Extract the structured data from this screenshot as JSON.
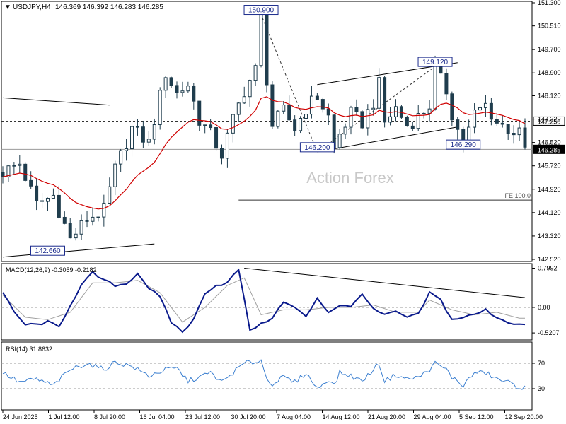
{
  "header": {
    "symbol": "USDJPY,H4",
    "ohlc": "146.369 146.392 146.283 146.285"
  },
  "watermark": "Action Forex",
  "colors": {
    "candle": "#1f3d4d",
    "ma": "#d00000",
    "macd": "#0a1a8c",
    "signal": "#a0a0a0",
    "rsi": "#3b7fd0",
    "grid": "#000000"
  },
  "chart_data": [
    {
      "type": "candlestick",
      "title": "",
      "ylim": [
        142.52,
        151.3
      ],
      "y_ticks": [
        "151.300",
        "150.510",
        "149.700",
        "148.900",
        "148.120",
        "147.320",
        "146.520",
        "145.720",
        "144.920",
        "144.120",
        "143.320",
        "142.520"
      ],
      "x_tick_labels": [
        "24 Jun 2025",
        "1 Jul 12:00",
        "8 Jul 20:00",
        "16 Jul 04:00",
        "23 Jul 12:00",
        "30 Jul 20:00",
        "7 Aug 04:00",
        "14 Aug 12:00",
        "21 Aug 20:00",
        "29 Aug 04:00",
        "5 Sep 12:00",
        "12 Sep 20:00"
      ],
      "close_path": [
        [
          0,
          145.5
        ],
        [
          3,
          145.8
        ],
        [
          6,
          144.4
        ],
        [
          9,
          144.7
        ],
        [
          12,
          143.2
        ],
        [
          15,
          143.9
        ],
        [
          18,
          144.2
        ],
        [
          20,
          145.6
        ],
        [
          23,
          147.0
        ],
        [
          26,
          146.5
        ],
        [
          29,
          148.9
        ],
        [
          31,
          148.2
        ],
        [
          33,
          148.5
        ],
        [
          35,
          147.3
        ],
        [
          37,
          146.8
        ],
        [
          39,
          146.1
        ],
        [
          41,
          147.3
        ],
        [
          43,
          148.3
        ],
        [
          45,
          149.0
        ],
        [
          46,
          150.9
        ],
        [
          47,
          148.7
        ],
        [
          48,
          147.1
        ],
        [
          50,
          147.6
        ],
        [
          52,
          147.0
        ],
        [
          54,
          147.7
        ],
        [
          56,
          148.1
        ],
        [
          58,
          147.4
        ],
        [
          59,
          146.3
        ],
        [
          60,
          146.8
        ],
        [
          62,
          147.5
        ],
        [
          64,
          147.2
        ],
        [
          66,
          147.9
        ],
        [
          67,
          148.5
        ],
        [
          68,
          147.2
        ],
        [
          70,
          147.7
        ],
        [
          72,
          147.1
        ],
        [
          74,
          147.4
        ],
        [
          76,
          147.8
        ],
        [
          77,
          149.0
        ],
        [
          79,
          148.3
        ],
        [
          80,
          147.5
        ],
        [
          82,
          146.4
        ],
        [
          84,
          147.5
        ],
        [
          86,
          147.8
        ],
        [
          88,
          147.2
        ],
        [
          90,
          147.0
        ],
        [
          92,
          146.8
        ],
        [
          93,
          146.3
        ]
      ],
      "highs_lows": {
        "high": 150.9,
        "low": 142.66
      },
      "annotations": [
        {
          "label": "150.900",
          "x": 46,
          "y": 150.9
        },
        {
          "label": "149.120",
          "x": 77,
          "y": 149.12
        },
        {
          "label": "146.200",
          "x": 56,
          "y": 146.2
        },
        {
          "label": "146.290",
          "x": 82,
          "y": 146.29
        },
        {
          "label": "142.660",
          "x": 8,
          "y": 142.66
        }
      ],
      "ma_label": "",
      "levels": [
        {
          "label": "147.250",
          "y": 147.25,
          "style": "dashed"
        },
        {
          "label": "146.285",
          "y": 146.285,
          "style": "solid"
        }
      ],
      "fe_label": "FE 100.0",
      "fe_level": 144.55,
      "trendlines": [
        {
          "from": [
            0,
            148.05
          ],
          "to": [
            19,
            147.8
          ]
        },
        {
          "from": [
            0,
            142.6
          ],
          "to": [
            27,
            143.05
          ]
        },
        {
          "from": [
            56,
            148.5
          ],
          "to": [
            81,
            149.25
          ]
        },
        {
          "from": [
            56,
            146.2
          ],
          "to": [
            81,
            147.05
          ]
        }
      ],
      "dashed_paths": [
        [
          [
            46,
            150.9
          ],
          [
            56,
            146.2
          ]
        ],
        [
          [
            56,
            146.2
          ],
          [
            77,
            149.12
          ]
        ]
      ]
    },
    {
      "type": "line",
      "title": "MACD(12,26,9) -0.3059 -0.2182",
      "ylim": [
        -0.62,
        0.85
      ],
      "y_ticks": [
        "0.7992",
        "0.00",
        "-0.5207"
      ],
      "macd_path": [
        [
          0,
          0.3
        ],
        [
          2,
          -0.1
        ],
        [
          4,
          -0.35
        ],
        [
          6,
          -0.35
        ],
        [
          8,
          -0.3
        ],
        [
          10,
          -0.4
        ],
        [
          12,
          0.05
        ],
        [
          14,
          0.45
        ],
        [
          16,
          0.7
        ],
        [
          18,
          0.55
        ],
        [
          20,
          0.45
        ],
        [
          22,
          0.48
        ],
        [
          24,
          0.7
        ],
        [
          26,
          0.4
        ],
        [
          28,
          0.2
        ],
        [
          30,
          -0.3
        ],
        [
          32,
          -0.5
        ],
        [
          34,
          -0.25
        ],
        [
          36,
          0.3
        ],
        [
          38,
          0.45
        ],
        [
          40,
          0.5
        ],
        [
          42,
          0.78
        ],
        [
          43,
          0.15
        ],
        [
          44,
          -0.45
        ],
        [
          46,
          -0.35
        ],
        [
          48,
          -0.2
        ],
        [
          50,
          0.1
        ],
        [
          52,
          0.0
        ],
        [
          54,
          -0.2
        ],
        [
          56,
          0.2
        ],
        [
          58,
          -0.1
        ],
        [
          60,
          0.05
        ],
        [
          62,
          0.0
        ],
        [
          64,
          0.3
        ],
        [
          66,
          -0.05
        ],
        [
          68,
          -0.15
        ],
        [
          70,
          -0.1
        ],
        [
          72,
          -0.2
        ],
        [
          74,
          -0.15
        ],
        [
          76,
          0.3
        ],
        [
          78,
          0.15
        ],
        [
          80,
          -0.25
        ],
        [
          82,
          -0.2
        ],
        [
          84,
          -0.15
        ],
        [
          86,
          -0.05
        ],
        [
          88,
          -0.2
        ],
        [
          90,
          -0.3
        ],
        [
          92,
          -0.35
        ]
      ],
      "signal_path": [
        [
          0,
          0.25
        ],
        [
          4,
          -0.2
        ],
        [
          8,
          -0.25
        ],
        [
          12,
          -0.1
        ],
        [
          16,
          0.5
        ],
        [
          20,
          0.5
        ],
        [
          24,
          0.55
        ],
        [
          28,
          0.3
        ],
        [
          32,
          -0.3
        ],
        [
          36,
          0.0
        ],
        [
          40,
          0.45
        ],
        [
          43,
          0.6
        ],
        [
          46,
          -0.15
        ],
        [
          50,
          -0.05
        ],
        [
          54,
          -0.05
        ],
        [
          58,
          0.0
        ],
        [
          62,
          0.0
        ],
        [
          66,
          0.05
        ],
        [
          70,
          -0.1
        ],
        [
          74,
          -0.1
        ],
        [
          76,
          0.15
        ],
        [
          80,
          -0.05
        ],
        [
          84,
          -0.15
        ],
        [
          88,
          -0.1
        ],
        [
          92,
          -0.22
        ]
      ],
      "trendline": {
        "from": [
          43,
          0.8
        ],
        "to": [
          93,
          0.2
        ]
      }
    },
    {
      "type": "line",
      "title": "RSI(14) 31.8632",
      "ylim": [
        0,
        100
      ],
      "y_ticks": [
        "70",
        "30"
      ],
      "levels": [
        70,
        30
      ],
      "rsi_path": [
        [
          0,
          55
        ],
        [
          3,
          40
        ],
        [
          6,
          45
        ],
        [
          9,
          35
        ],
        [
          12,
          60
        ],
        [
          15,
          70
        ],
        [
          18,
          60
        ],
        [
          20,
          72
        ],
        [
          23,
          65
        ],
        [
          26,
          50
        ],
        [
          29,
          60
        ],
        [
          31,
          62
        ],
        [
          33,
          42
        ],
        [
          35,
          48
        ],
        [
          37,
          55
        ],
        [
          39,
          40
        ],
        [
          41,
          55
        ],
        [
          43,
          70
        ],
        [
          45,
          72
        ],
        [
          46,
          75
        ],
        [
          47,
          45
        ],
        [
          48,
          38
        ],
        [
          50,
          48
        ],
        [
          52,
          40
        ],
        [
          54,
          55
        ],
        [
          56,
          30
        ],
        [
          58,
          45
        ],
        [
          59,
          35
        ],
        [
          60,
          55
        ],
        [
          62,
          50
        ],
        [
          64,
          42
        ],
        [
          66,
          60
        ],
        [
          67,
          70
        ],
        [
          68,
          42
        ],
        [
          70,
          52
        ],
        [
          72,
          45
        ],
        [
          74,
          48
        ],
        [
          76,
          60
        ],
        [
          77,
          70
        ],
        [
          79,
          60
        ],
        [
          80,
          48
        ],
        [
          82,
          35
        ],
        [
          84,
          55
        ],
        [
          86,
          55
        ],
        [
          88,
          45
        ],
        [
          90,
          40
        ],
        [
          92,
          32
        ],
        [
          93,
          32
        ]
      ]
    }
  ]
}
